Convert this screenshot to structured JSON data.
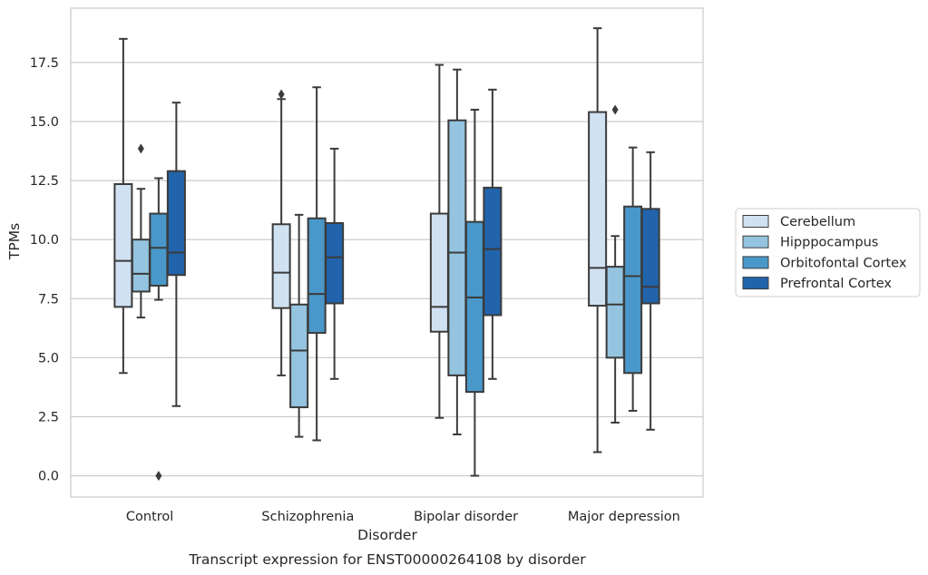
{
  "chart_data": {
    "type": "box",
    "xlabel": "Disorder",
    "ylabel": "TPMs",
    "caption": "Transcript expression for ENST00000264108 by disorder",
    "ylim": [
      -0.9,
      19.8
    ],
    "yticks": [
      0.0,
      2.5,
      5.0,
      7.5,
      10.0,
      12.5,
      15.0,
      17.5
    ],
    "ytick_labels": [
      "0.0",
      "2.5",
      "5.0",
      "7.5",
      "10.0",
      "12.5",
      "15.0",
      "17.5"
    ],
    "grid": "horizontal",
    "legend_placement": "right",
    "categories": [
      "Control",
      "Schizophrenia",
      "Bipolar disorder",
      "Major depression"
    ],
    "series": [
      {
        "name": "Cerebellum",
        "color": "#d0e1f2",
        "boxes": [
          {
            "whislo": 4.35,
            "q1": 7.15,
            "med": 9.1,
            "q3": 12.35,
            "whishi": 18.5,
            "fliers": []
          },
          {
            "whislo": 4.25,
            "q1": 7.1,
            "med": 8.6,
            "q3": 10.65,
            "whishi": 15.95,
            "fliers": [
              16.15
            ]
          },
          {
            "whislo": 2.45,
            "q1": 6.1,
            "med": 7.15,
            "q3": 11.1,
            "whishi": 17.4,
            "fliers": []
          },
          {
            "whislo": 1.0,
            "q1": 7.2,
            "med": 8.8,
            "q3": 15.4,
            "whishi": 18.95,
            "fliers": []
          }
        ]
      },
      {
        "name": "Hipppocampus",
        "color": "#94c4df",
        "boxes": [
          {
            "whislo": 6.7,
            "q1": 7.8,
            "med": 8.55,
            "q3": 10.0,
            "whishi": 12.15,
            "fliers": [
              13.85
            ]
          },
          {
            "whislo": 1.65,
            "q1": 2.9,
            "med": 5.3,
            "q3": 7.25,
            "whishi": 11.05,
            "fliers": []
          },
          {
            "whislo": 1.75,
            "q1": 4.25,
            "med": 9.45,
            "q3": 15.05,
            "whishi": 17.2,
            "fliers": []
          },
          {
            "whislo": 2.25,
            "q1": 5.0,
            "med": 7.25,
            "q3": 8.85,
            "whishi": 10.15,
            "fliers": [
              15.5
            ]
          }
        ]
      },
      {
        "name": "Orbitofontal Cortex",
        "color": "#4a98c9",
        "boxes": [
          {
            "whislo": 7.45,
            "q1": 8.05,
            "med": 9.65,
            "q3": 11.1,
            "whishi": 12.6,
            "fliers": [
              0.0
            ]
          },
          {
            "whislo": 1.5,
            "q1": 6.05,
            "med": 7.7,
            "q3": 10.9,
            "whishi": 16.45,
            "fliers": []
          },
          {
            "whislo": 0.0,
            "q1": 3.55,
            "med": 7.55,
            "q3": 10.75,
            "whishi": 15.5,
            "fliers": []
          },
          {
            "whislo": 2.75,
            "q1": 4.35,
            "med": 8.45,
            "q3": 11.4,
            "whishi": 13.9,
            "fliers": []
          }
        ]
      },
      {
        "name": "Prefrontal Cortex",
        "color": "#2164ab",
        "boxes": [
          {
            "whislo": 2.95,
            "q1": 8.5,
            "med": 9.45,
            "q3": 12.9,
            "whishi": 15.8,
            "fliers": []
          },
          {
            "whislo": 4.1,
            "q1": 7.3,
            "med": 9.25,
            "q3": 10.7,
            "whishi": 13.85,
            "fliers": []
          },
          {
            "whislo": 4.1,
            "q1": 6.8,
            "med": 9.6,
            "q3": 12.2,
            "whishi": 16.35,
            "fliers": []
          },
          {
            "whislo": 1.95,
            "q1": 7.3,
            "med": 8.0,
            "q3": 11.3,
            "whishi": 13.7,
            "fliers": []
          }
        ]
      }
    ]
  }
}
